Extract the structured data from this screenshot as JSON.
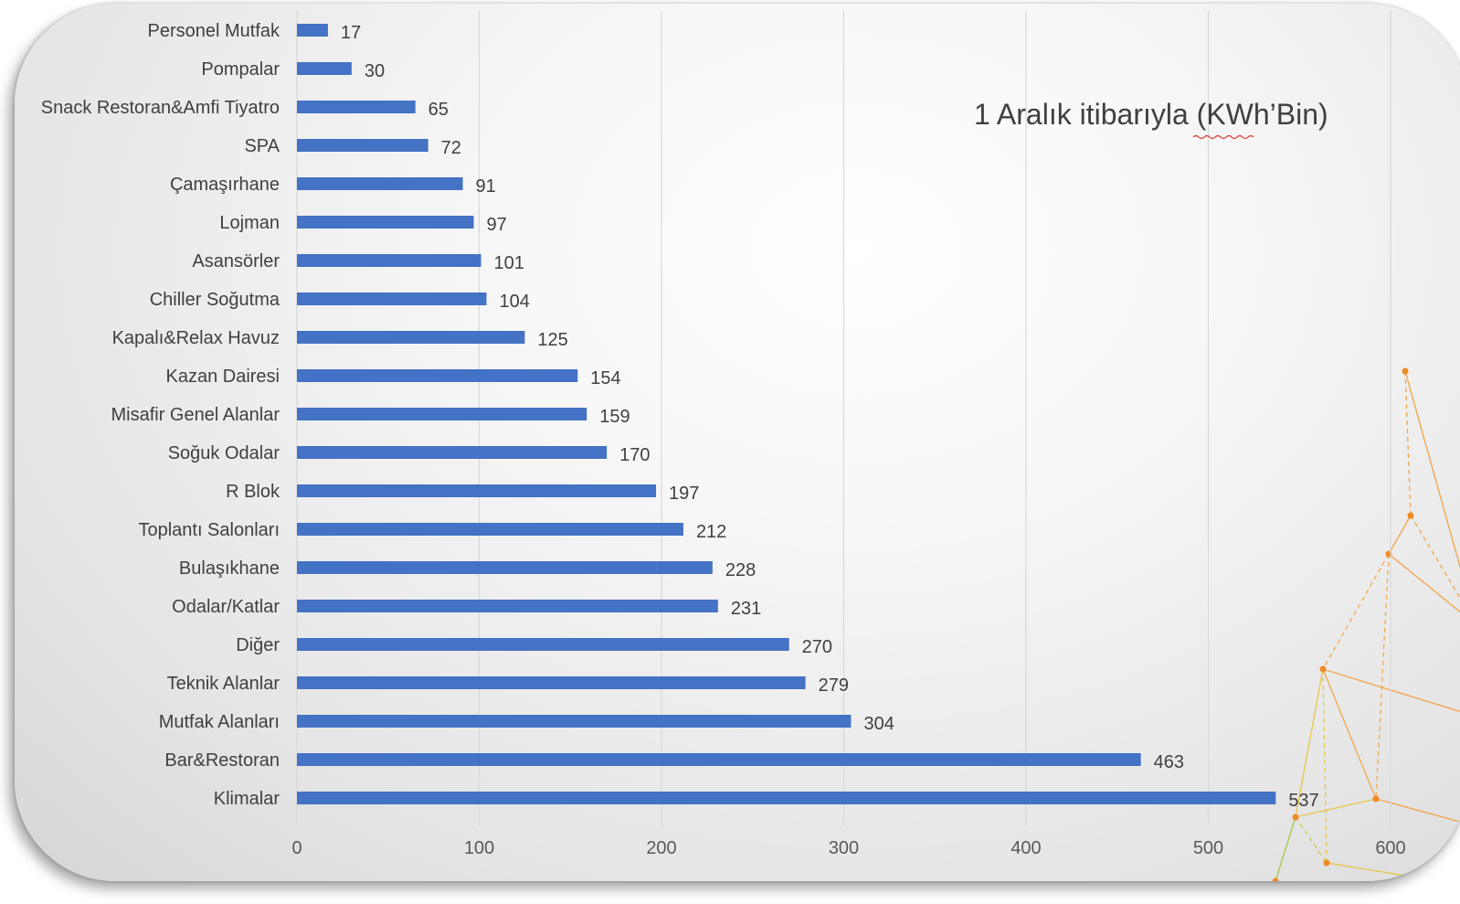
{
  "chart_data": {
    "type": "bar",
    "orientation": "horizontal",
    "title": "1 Aralık itibarıyla (KWh’Bin)",
    "xlim": [
      0,
      600
    ],
    "xticks": [
      0,
      100,
      200,
      300,
      400,
      500,
      600
    ],
    "xtick_labels": [
      "0",
      "100",
      "200",
      "300",
      "400",
      "500",
      "600"
    ],
    "grid": true,
    "bar_color": "#4472c4",
    "categories": [
      "Personel Mutfak",
      "Pompalar",
      "Snack Restoran&Amfi Tiyatro",
      "SPA",
      "Çamaşırhane",
      "Lojman",
      "Asansörler",
      "Chiller Soğutma",
      "Kapalı&Relax Havuz",
      "Kazan Dairesi",
      "Misafir Genel Alanlar",
      "Soğuk Odalar",
      "R Blok",
      "Toplantı Salonları",
      "Bulaşıkhane",
      "Odalar/Katlar",
      "Diğer",
      "Teknik Alanlar",
      "Mutfak Alanları",
      "Bar&Restoran",
      "Klimalar"
    ],
    "values": [
      17,
      30,
      65,
      72,
      91,
      97,
      101,
      104,
      125,
      154,
      159,
      170,
      197,
      212,
      228,
      231,
      270,
      279,
      304,
      463,
      537
    ]
  }
}
